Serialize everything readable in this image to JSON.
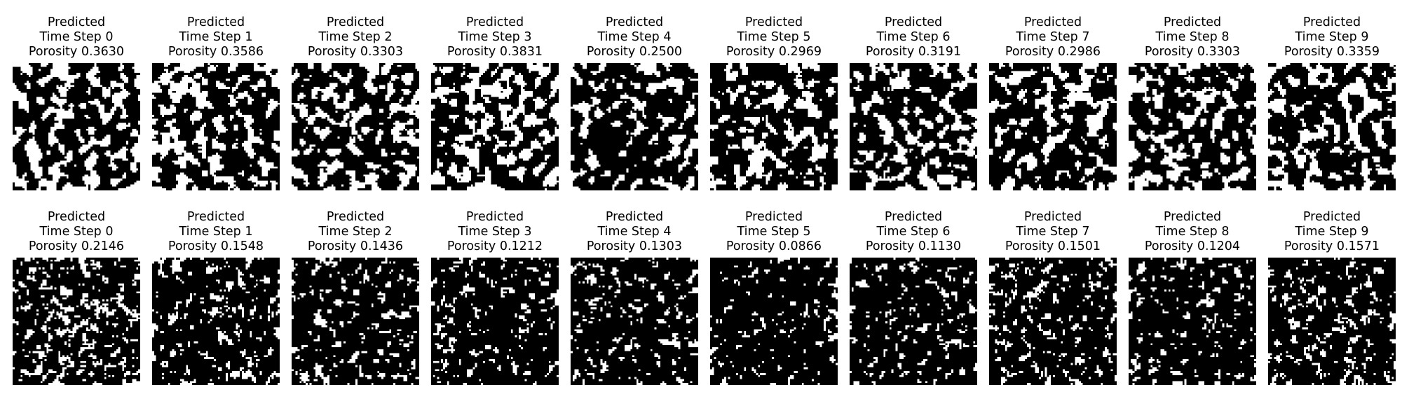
{
  "rows": [
    {
      "panels": [
        {
          "line1": "Predicted",
          "line2": "Time Step 0",
          "line3": "Porosity 0.3630",
          "porosity": 0.363
        },
        {
          "line1": "Predicted",
          "line2": "Time Step 1",
          "line3": "Porosity 0.3586",
          "porosity": 0.3586
        },
        {
          "line1": "Predicted",
          "line2": "Time Step 2",
          "line3": "Porosity 0.3303",
          "porosity": 0.3303
        },
        {
          "line1": "Predicted",
          "line2": "Time Step 3",
          "line3": "Porosity 0.3831",
          "porosity": 0.3831
        },
        {
          "line1": "Predicted",
          "line2": "Time Step 4",
          "line3": "Porosity 0.2500",
          "porosity": 0.25
        },
        {
          "line1": "Predicted",
          "line2": "Time Step 5",
          "line3": "Porosity 0.2969",
          "porosity": 0.2969
        },
        {
          "line1": "Predicted",
          "line2": "Time Step 6",
          "line3": "Porosity 0.3191",
          "porosity": 0.3191
        },
        {
          "line1": "Predicted",
          "line2": "Time Step 7",
          "line3": "Porosity 0.2986",
          "porosity": 0.2986
        },
        {
          "line1": "Predicted",
          "line2": "Time Step 8",
          "line3": "Porosity 0.3303",
          "porosity": 0.3303
        },
        {
          "line1": "Predicted",
          "line2": "Time Step 9",
          "line3": "Porosity 0.3359",
          "porosity": 0.3359
        }
      ]
    },
    {
      "panels": [
        {
          "line1": "Predicted",
          "line2": "Time Step 0",
          "line3": "Porosity 0.2146",
          "porosity": 0.2146
        },
        {
          "line1": "Predicted",
          "line2": "Time Step 1",
          "line3": "Porosity 0.1548",
          "porosity": 0.1548
        },
        {
          "line1": "Predicted",
          "line2": "Time Step 2",
          "line3": "Porosity 0.1436",
          "porosity": 0.1436
        },
        {
          "line1": "Predicted",
          "line2": "Time Step 3",
          "line3": "Porosity 0.1212",
          "porosity": 0.1212
        },
        {
          "line1": "Predicted",
          "line2": "Time Step 4",
          "line3": "Porosity 0.1303",
          "porosity": 0.1303
        },
        {
          "line1": "Predicted",
          "line2": "Time Step 5",
          "line3": "Porosity 0.0866",
          "porosity": 0.0866
        },
        {
          "line1": "Predicted",
          "line2": "Time Step 6",
          "line3": "Porosity 0.1130",
          "porosity": 0.113
        },
        {
          "line1": "Predicted",
          "line2": "Time Step 7",
          "line3": "Porosity 0.1501",
          "porosity": 0.1501
        },
        {
          "line1": "Predicted",
          "line2": "Time Step 8",
          "line3": "Porosity 0.1204",
          "porosity": 0.1204
        },
        {
          "line1": "Predicted",
          "line2": "Time Step 9",
          "line3": "Porosity 0.1571",
          "porosity": 0.1571
        }
      ]
    }
  ],
  "colors": {
    "pore": "#ffffff",
    "solid": "#000000",
    "background": "#ffffff"
  }
}
